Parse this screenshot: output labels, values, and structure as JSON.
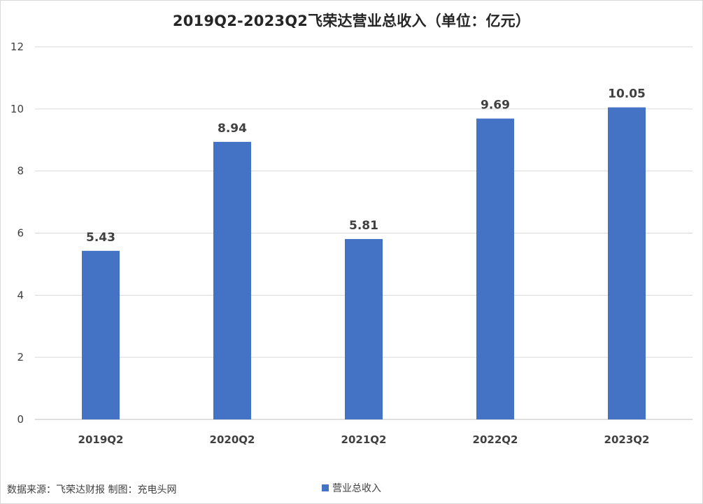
{
  "chart_data": {
    "type": "bar",
    "title": "2019Q2-2023Q2飞荣达营业总收入（单位：亿元）",
    "categories": [
      "2019Q2",
      "2020Q2",
      "2021Q2",
      "2022Q2",
      "2023Q2"
    ],
    "series": [
      {
        "name": "营业总收入",
        "values": [
          5.43,
          8.94,
          5.81,
          9.69,
          10.05
        ],
        "color": "#4472c4"
      }
    ],
    "ylim": [
      0,
      12
    ],
    "yticks": [
      0,
      2,
      4,
      6,
      8,
      10,
      12
    ],
    "grid": true,
    "legend": "bottom-center",
    "data_labels": true
  },
  "footer": {
    "source": "数据来源：飞荣达财报  制图：充电头网"
  }
}
